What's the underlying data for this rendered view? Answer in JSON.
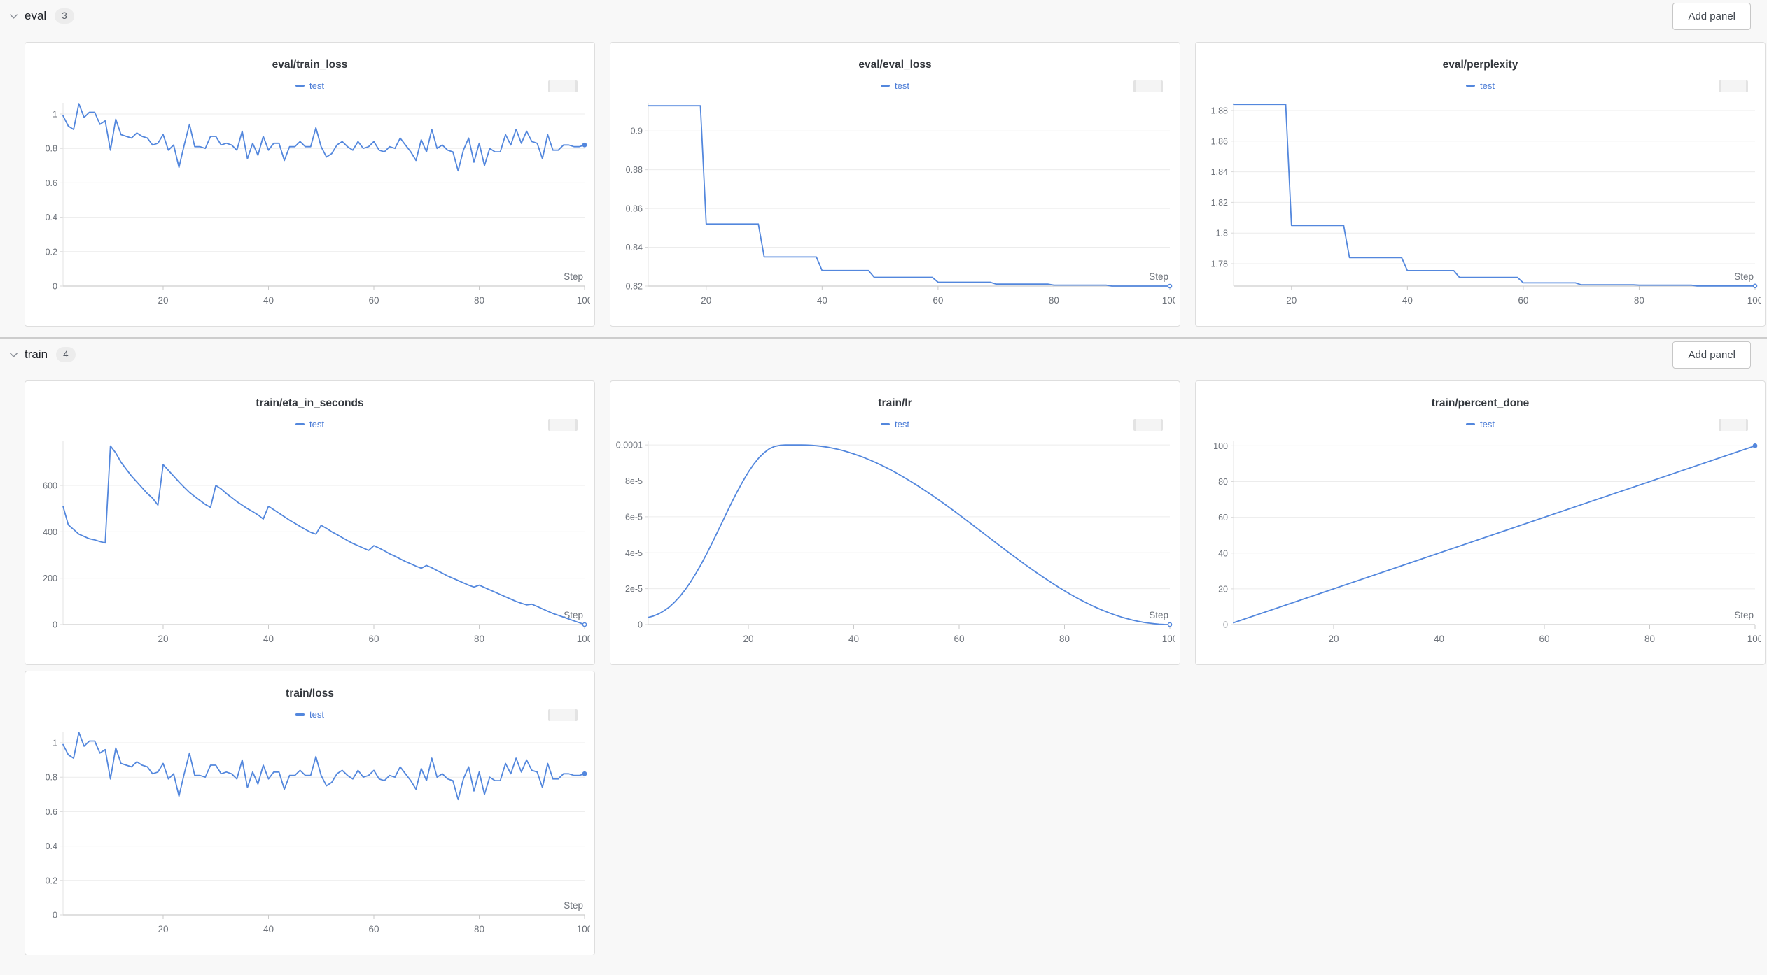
{
  "colors": {
    "line": "#5387DD",
    "legend_text": "#4B7CD6",
    "grid_line": "#ececec",
    "axis_line": "#d6d6d6",
    "tick_text": "#6d727a",
    "page_background": "#f8f8f8",
    "panel_background": "#ffffff"
  },
  "sections": [
    {
      "name": "eval",
      "count": "3",
      "add_panel_label": "Add panel",
      "chart_ids": [
        0,
        1,
        2
      ]
    },
    {
      "name": "train",
      "count": "4",
      "add_panel_label": "Add panel",
      "chart_ids": [
        3,
        4,
        5,
        6
      ]
    }
  ],
  "chart_data": [
    {
      "type": "line",
      "title": "eval/train_loss",
      "legend": [
        "test"
      ],
      "xlabel": "Step",
      "xlim": [
        1,
        100
      ],
      "xticks": [
        20,
        40,
        60,
        80,
        100
      ],
      "xtick_labels": [
        "20",
        "40",
        "60",
        "80",
        "100"
      ],
      "ylim": [
        0,
        1.065
      ],
      "yticks": [
        0,
        0.2,
        0.4,
        0.6,
        0.8,
        1
      ],
      "ytick_labels": [
        "0",
        "0.2",
        "0.4",
        "0.6",
        "0.8",
        "1"
      ],
      "end_marker": "solid",
      "values": [
        0.99,
        0.93,
        0.91,
        1.06,
        0.98,
        1.01,
        1.01,
        0.94,
        0.96,
        0.79,
        0.97,
        0.88,
        0.87,
        0.86,
        0.89,
        0.87,
        0.86,
        0.82,
        0.83,
        0.88,
        0.79,
        0.82,
        0.69,
        0.82,
        0.94,
        0.81,
        0.81,
        0.8,
        0.87,
        0.87,
        0.82,
        0.83,
        0.82,
        0.79,
        0.9,
        0.74,
        0.83,
        0.76,
        0.87,
        0.79,
        0.83,
        0.83,
        0.73,
        0.81,
        0.81,
        0.84,
        0.81,
        0.81,
        0.92,
        0.81,
        0.75,
        0.77,
        0.82,
        0.84,
        0.81,
        0.79,
        0.84,
        0.8,
        0.81,
        0.84,
        0.79,
        0.78,
        0.81,
        0.8,
        0.86,
        0.82,
        0.78,
        0.73,
        0.85,
        0.78,
        0.91,
        0.8,
        0.82,
        0.79,
        0.78,
        0.67,
        0.79,
        0.86,
        0.72,
        0.83,
        0.7,
        0.8,
        0.78,
        0.78,
        0.88,
        0.82,
        0.91,
        0.83,
        0.9,
        0.84,
        0.83,
        0.74,
        0.88,
        0.79,
        0.79,
        0.82,
        0.82,
        0.81,
        0.81,
        0.82
      ]
    },
    {
      "type": "line",
      "title": "eval/eval_loss",
      "legend": [
        "test"
      ],
      "xlabel": "Step",
      "xlim": [
        10,
        100
      ],
      "xticks": [
        20,
        40,
        60,
        80,
        100
      ],
      "xtick_labels": [
        "20",
        "40",
        "60",
        "80",
        "100"
      ],
      "ylim": [
        0.82,
        0.9145
      ],
      "yticks": [
        0.82,
        0.84,
        0.86,
        0.88,
        0.9
      ],
      "ytick_labels": [
        "0.82",
        "0.84",
        "0.86",
        "0.88",
        "0.9"
      ],
      "end_marker": "open",
      "x": [
        10,
        19,
        20,
        29,
        30,
        39,
        40,
        48,
        49,
        59,
        60,
        69,
        70,
        79,
        80,
        89,
        90,
        100
      ],
      "y": [
        0.913,
        0.913,
        0.852,
        0.852,
        0.835,
        0.835,
        0.828,
        0.828,
        0.8245,
        0.8245,
        0.822,
        0.822,
        0.821,
        0.821,
        0.8205,
        0.8205,
        0.82,
        0.82
      ]
    },
    {
      "type": "line",
      "title": "eval/perplexity",
      "legend": [
        "test"
      ],
      "xlabel": "Step",
      "xlim": [
        10,
        100
      ],
      "xticks": [
        20,
        40,
        60,
        80,
        100
      ],
      "xtick_labels": [
        "20",
        "40",
        "60",
        "80",
        "100"
      ],
      "ylim": [
        1.7654,
        1.885
      ],
      "yticks": [
        1.78,
        1.8,
        1.82,
        1.84,
        1.86,
        1.88
      ],
      "ytick_labels": [
        "1.78",
        "1.8",
        "1.82",
        "1.84",
        "1.86",
        "1.88"
      ],
      "end_marker": "open",
      "x": [
        10,
        19,
        20,
        29,
        30,
        39,
        40,
        48,
        49,
        59,
        60,
        69,
        70,
        79,
        80,
        89,
        90,
        100
      ],
      "y": [
        1.884,
        1.884,
        1.805,
        1.805,
        1.784,
        1.784,
        1.7755,
        1.7755,
        1.771,
        1.771,
        1.7675,
        1.7675,
        1.7662,
        1.7662,
        1.766,
        1.766,
        1.7655,
        1.7655
      ]
    },
    {
      "type": "line",
      "title": "train/eta_in_seconds",
      "legend": [
        "test"
      ],
      "xlabel": "Step",
      "xlim": [
        1,
        100
      ],
      "xticks": [
        20,
        40,
        60,
        80,
        100
      ],
      "xtick_labels": [
        "20",
        "40",
        "60",
        "80",
        "100"
      ],
      "ylim": [
        0,
        790
      ],
      "yticks": [
        0,
        200,
        400,
        600
      ],
      "ytick_labels": [
        "0",
        "200",
        "400",
        "600"
      ],
      "end_marker": "open",
      "values": [
        510,
        430,
        410,
        390,
        380,
        370,
        365,
        358,
        352,
        770,
        740,
        700,
        670,
        640,
        615,
        590,
        565,
        545,
        515,
        690,
        665,
        640,
        615,
        592,
        570,
        552,
        535,
        518,
        505,
        600,
        585,
        565,
        548,
        530,
        515,
        500,
        487,
        473,
        455,
        510,
        495,
        480,
        465,
        450,
        437,
        423,
        410,
        398,
        390,
        428,
        415,
        400,
        388,
        375,
        362,
        350,
        340,
        330,
        320,
        340,
        330,
        318,
        305,
        295,
        283,
        272,
        262,
        252,
        243,
        255,
        245,
        233,
        222,
        210,
        200,
        190,
        180,
        170,
        162,
        170,
        160,
        150,
        140,
        130,
        120,
        110,
        100,
        92,
        85,
        88,
        78,
        68,
        58,
        48,
        40,
        32,
        24,
        16,
        8,
        0
      ]
    },
    {
      "type": "line",
      "title": "train/lr",
      "legend": [
        "test"
      ],
      "xlabel": "Step",
      "xlim": [
        1,
        100
      ],
      "xticks": [
        20,
        40,
        60,
        80,
        100
      ],
      "xtick_labels": [
        "20",
        "40",
        "60",
        "80",
        "100"
      ],
      "ylim": [
        0,
        0.000102
      ],
      "yticks": [
        0,
        2e-05,
        4e-05,
        6e-05,
        8e-05,
        0.0001
      ],
      "ytick_labels": [
        "0",
        "2e-5",
        "4e-5",
        "6e-5",
        "8e-5",
        "0.0001"
      ],
      "end_marker": "open",
      "values": [
        4e-06,
        4.8e-06,
        6e-06,
        7.7e-06,
        9.8e-06,
        1.25e-05,
        1.57e-05,
        1.94e-05,
        2.36e-05,
        2.83e-05,
        3.34e-05,
        3.89e-05,
        4.47e-05,
        5.07e-05,
        5.68e-05,
        6.29e-05,
        6.89e-05,
        7.46e-05,
        8e-05,
        8.49e-05,
        8.92e-05,
        9.28e-05,
        9.57e-05,
        9.79e-05,
        9.92e-05,
        9.98e-05,
        0.0001,
        0.0001,
        0.0001,
        0.0001,
        9.995e-05,
        9.98e-05,
        9.955e-05,
        9.92e-05,
        9.875e-05,
        9.82e-05,
        9.755e-05,
        9.681e-05,
        9.598e-05,
        9.505e-05,
        9.403e-05,
        9.292e-05,
        9.173e-05,
        9.045e-05,
        8.909e-05,
        8.766e-05,
        8.615e-05,
        8.455e-05,
        8.29e-05,
        8.117e-05,
        7.939e-05,
        7.755e-05,
        7.564e-05,
        7.369e-05,
        7.169e-05,
        6.965e-05,
        6.757e-05,
        6.545e-05,
        6.33e-05,
        6.113e-05,
        5.893e-05,
        5.671e-05,
        5.448e-05,
        5.224e-05,
        5e-05,
        4.776e-05,
        4.552e-05,
        4.329e-05,
        4.107e-05,
        3.887e-05,
        3.67e-05,
        3.455e-05,
        3.243e-05,
        3.035e-05,
        2.831e-05,
        2.631e-05,
        2.436e-05,
        2.245e-05,
        2.061e-05,
        1.883e-05,
        1.71e-05,
        1.545e-05,
        1.385e-05,
        1.234e-05,
        1.091e-05,
        9.55e-06,
        8.27e-06,
        7.08e-06,
        5.97e-06,
        4.95e-06,
        4.02e-06,
        3.19e-06,
        2.45e-06,
        1.8e-06,
        1.25e-06,
        8e-07,
        4.5e-07,
        2e-07,
        5e-08,
        0
      ]
    },
    {
      "type": "line",
      "title": "train/percent_done",
      "legend": [
        "test"
      ],
      "xlabel": "Step",
      "xlim": [
        1,
        100
      ],
      "xticks": [
        20,
        40,
        60,
        80,
        100
      ],
      "xtick_labels": [
        "20",
        "40",
        "60",
        "80",
        "100"
      ],
      "ylim": [
        0,
        102.5
      ],
      "yticks": [
        0,
        20,
        40,
        60,
        80,
        100
      ],
      "ytick_labels": [
        "0",
        "20",
        "40",
        "60",
        "80",
        "100"
      ],
      "end_marker": "solid",
      "x": [
        1,
        100
      ],
      "y": [
        1,
        100
      ]
    },
    {
      "type": "line",
      "title": "train/loss",
      "legend": [
        "test"
      ],
      "xlabel": "Step",
      "xlim": [
        1,
        100
      ],
      "xticks": [
        20,
        40,
        60,
        80,
        100
      ],
      "xtick_labels": [
        "20",
        "40",
        "60",
        "80",
        "100"
      ],
      "ylim": [
        0,
        1.065
      ],
      "yticks": [
        0,
        0.2,
        0.4,
        0.6,
        0.8,
        1
      ],
      "ytick_labels": [
        "0",
        "0.2",
        "0.4",
        "0.6",
        "0.8",
        "1"
      ],
      "end_marker": "solid",
      "values": [
        0.99,
        0.93,
        0.91,
        1.06,
        0.98,
        1.01,
        1.01,
        0.94,
        0.96,
        0.79,
        0.97,
        0.88,
        0.87,
        0.86,
        0.89,
        0.87,
        0.86,
        0.82,
        0.83,
        0.88,
        0.79,
        0.82,
        0.69,
        0.82,
        0.94,
        0.81,
        0.81,
        0.8,
        0.87,
        0.87,
        0.82,
        0.83,
        0.82,
        0.79,
        0.9,
        0.74,
        0.83,
        0.76,
        0.87,
        0.79,
        0.83,
        0.83,
        0.73,
        0.81,
        0.81,
        0.84,
        0.81,
        0.81,
        0.92,
        0.81,
        0.75,
        0.77,
        0.82,
        0.84,
        0.81,
        0.79,
        0.84,
        0.8,
        0.81,
        0.84,
        0.79,
        0.78,
        0.81,
        0.8,
        0.86,
        0.82,
        0.78,
        0.73,
        0.85,
        0.78,
        0.91,
        0.8,
        0.82,
        0.79,
        0.78,
        0.67,
        0.79,
        0.86,
        0.72,
        0.83,
        0.7,
        0.8,
        0.78,
        0.78,
        0.88,
        0.82,
        0.91,
        0.83,
        0.9,
        0.84,
        0.83,
        0.74,
        0.88,
        0.79,
        0.79,
        0.82,
        0.82,
        0.81,
        0.81,
        0.82
      ]
    }
  ]
}
